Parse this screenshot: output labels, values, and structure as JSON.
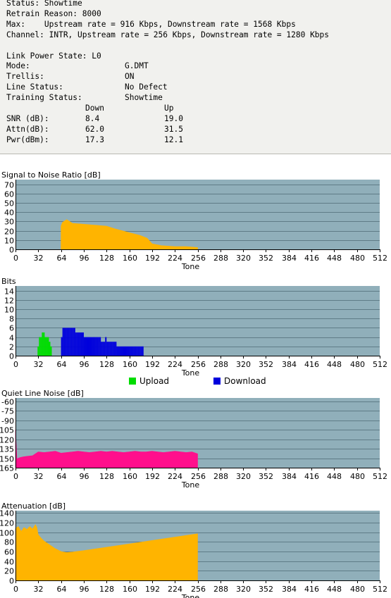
{
  "status": {
    "lines": [
      "Status: Showtime",
      "Retrain Reason: 8000",
      "Max:    Upstream rate = 916 Kbps, Downstream rate = 1568 Kbps",
      "Channel: INTR, Upstream rate = 256 Kbps, Downstream rate = 1280 Kbps"
    ],
    "link_power_state": "Link Power State: L0",
    "fields": [
      {
        "label": "Mode:",
        "value": "G.DMT"
      },
      {
        "label": "Trellis:",
        "value": "ON"
      },
      {
        "label": "Line Status:",
        "value": "No Defect"
      },
      {
        "label": "Training Status:",
        "value": "Showtime"
      }
    ],
    "metrics_header": {
      "down": "Down",
      "up": "Up"
    },
    "metrics": [
      {
        "label": "SNR (dB):",
        "down": "8.4",
        "up": "19.0"
      },
      {
        "label": "Attn(dB):",
        "down": "62.0",
        "up": "31.5"
      },
      {
        "label": "Pwr(dBm):",
        "down": "17.3",
        "up": "12.1"
      }
    ]
  },
  "colors": {
    "plot_bg": "#90afba",
    "grid": "#5f7c87",
    "snr": "#ffb400",
    "upload": "#00dd00",
    "download": "#0000dd",
    "qln": "#ff0f8c",
    "attenuation": "#ffb400"
  },
  "chart_data": [
    {
      "type": "area",
      "title": "Signal to Noise Ratio [dB]",
      "xlabel": "Tone",
      "xlim": [
        0,
        512
      ],
      "ylim": [
        0,
        75
      ],
      "xticks": [
        0,
        32,
        64,
        96,
        128,
        160,
        192,
        224,
        256,
        288,
        320,
        352,
        384,
        416,
        448,
        480,
        512
      ],
      "yticks": [
        0,
        10,
        20,
        30,
        40,
        50,
        60,
        70
      ],
      "series": [
        {
          "color_key": "snr",
          "x": [
            64,
            66,
            68,
            72,
            76,
            80,
            96,
            112,
            128,
            140,
            150,
            160,
            175,
            185,
            192,
            205,
            224,
            240,
            256
          ],
          "y": [
            25,
            29,
            30,
            32,
            30,
            28,
            27,
            26,
            25,
            22,
            20,
            18,
            15,
            12,
            6,
            4,
            3,
            3,
            2
          ]
        }
      ]
    },
    {
      "type": "bar",
      "title": "Bits",
      "xlabel": "Tone",
      "xlim": [
        0,
        512
      ],
      "ylim": [
        0,
        15
      ],
      "xticks": [
        0,
        32,
        64,
        96,
        128,
        160,
        192,
        224,
        256,
        288,
        320,
        352,
        384,
        416,
        448,
        480,
        512
      ],
      "yticks": [
        0,
        2,
        4,
        6,
        8,
        10,
        12,
        14
      ],
      "series": [
        {
          "name": "Upload",
          "color_key": "upload",
          "x": [
            31,
            33,
            35,
            37,
            39,
            41,
            43,
            45,
            47,
            49
          ],
          "y": [
            2,
            4,
            4,
            5,
            5,
            4,
            4,
            4,
            3,
            2
          ]
        },
        {
          "name": "Download",
          "color_key": "download",
          "x": [
            64,
            66,
            68,
            70,
            72,
            74,
            76,
            78,
            80,
            82,
            84,
            86,
            88,
            90,
            92,
            94,
            96,
            98,
            100,
            102,
            104,
            106,
            108,
            110,
            112,
            114,
            116,
            118,
            120,
            122,
            124,
            126,
            128,
            130,
            132,
            134,
            136,
            138,
            140,
            142,
            144,
            146,
            148,
            150,
            152,
            154,
            156,
            158,
            160,
            162,
            164,
            166,
            168,
            170,
            172,
            174,
            176,
            178
          ],
          "y": [
            4,
            6,
            6,
            6,
            6,
            6,
            6,
            6,
            6,
            6,
            5,
            5,
            5,
            5,
            5,
            5,
            4,
            4,
            4,
            4,
            4,
            4,
            4,
            4,
            4,
            4,
            4,
            4,
            3,
            3,
            3,
            4,
            3,
            3,
            3,
            3,
            3,
            3,
            3,
            2,
            2,
            2,
            2,
            2,
            2,
            2,
            2,
            2,
            2,
            2,
            2,
            2,
            2,
            2,
            2,
            2,
            2,
            2
          ]
        }
      ]
    },
    {
      "type": "area",
      "title": "Quiet Line Noise [dB]",
      "xlabel": "Tone",
      "xlim": [
        0,
        512
      ],
      "ylim": [
        -165,
        -55
      ],
      "y_inverted": true,
      "xticks": [
        0,
        32,
        64,
        96,
        128,
        160,
        192,
        224,
        256,
        288,
        320,
        352,
        384,
        416,
        448,
        480,
        512
      ],
      "yticks": [
        -60,
        -75,
        -90,
        -105,
        -120,
        -135,
        -150,
        -165
      ],
      "series": [
        {
          "color_key": "qln",
          "x": [
            0,
            2,
            6,
            10,
            16,
            24,
            32,
            40,
            48,
            56,
            64,
            72,
            80,
            88,
            96,
            104,
            112,
            120,
            128,
            136,
            144,
            152,
            160,
            168,
            176,
            184,
            192,
            200,
            208,
            216,
            224,
            232,
            240,
            248,
            256
          ],
          "y": [
            -105,
            -151,
            -149,
            -148,
            -147,
            -146,
            -140,
            -141,
            -140,
            -139,
            -142,
            -141,
            -140,
            -139,
            -140,
            -141,
            -140,
            -139,
            -140,
            -139,
            -140,
            -141,
            -140,
            -139,
            -140,
            -140,
            -139,
            -140,
            -141,
            -140,
            -139,
            -140,
            -141,
            -140,
            -143
          ]
        }
      ]
    },
    {
      "type": "area",
      "title": "Attenuation [dB]",
      "xlabel": "Tone",
      "xlim": [
        0,
        512
      ],
      "ylim": [
        0,
        145
      ],
      "xticks": [
        0,
        32,
        64,
        96,
        128,
        160,
        192,
        224,
        256,
        288,
        320,
        352,
        384,
        416,
        448,
        480,
        512
      ],
      "yticks": [
        0,
        20,
        40,
        60,
        80,
        100,
        120,
        140
      ],
      "series": [
        {
          "color_key": "attenuation",
          "x": [
            0,
            4,
            8,
            12,
            16,
            20,
            24,
            28,
            30,
            32,
            36,
            40,
            48,
            56,
            64,
            72,
            80,
            96,
            128,
            160,
            192,
            224,
            256
          ],
          "y": [
            108,
            112,
            102,
            110,
            106,
            112,
            107,
            116,
            110,
            95,
            88,
            82,
            74,
            66,
            60,
            58,
            59,
            62,
            69,
            76,
            83,
            90,
            97
          ]
        }
      ]
    }
  ]
}
